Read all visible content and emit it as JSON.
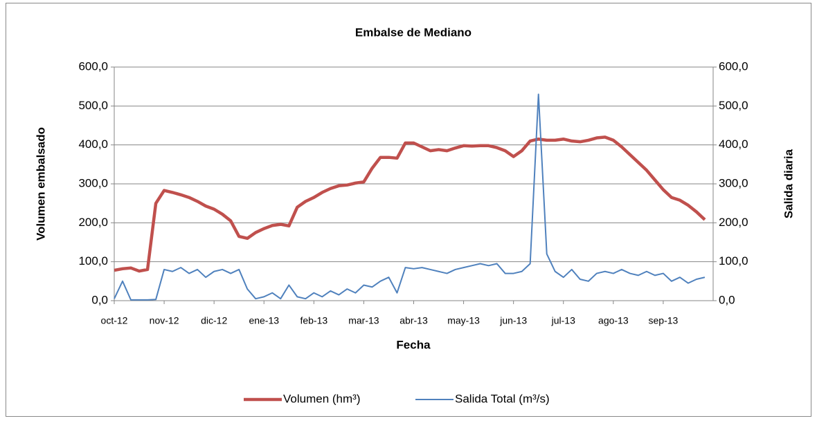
{
  "chart_data": {
    "type": "line",
    "title": "Embalse de Mediano",
    "x_label": "Fecha",
    "y_label": "Volumen embalsado",
    "y2_label": "Salida diaria",
    "categories": [
      "oct-12",
      null,
      null,
      null,
      null,
      null,
      "nov-12",
      null,
      null,
      null,
      null,
      null,
      "dic-12",
      null,
      null,
      null,
      null,
      null,
      "ene-13",
      null,
      null,
      null,
      null,
      null,
      "feb-13",
      null,
      null,
      null,
      null,
      null,
      "mar-13",
      null,
      null,
      null,
      null,
      null,
      "abr-13",
      null,
      null,
      null,
      null,
      null,
      "may-13",
      null,
      null,
      null,
      null,
      null,
      "jun-13",
      null,
      null,
      null,
      null,
      null,
      "jul-13",
      null,
      null,
      null,
      null,
      null,
      "ago-13",
      null,
      null,
      null,
      null,
      null,
      "sep-13",
      null,
      null,
      null,
      null,
      null
    ],
    "series": [
      {
        "name": "Volumen (hm³)",
        "color": "#c0504d",
        "width": 4.5,
        "values": [
          78,
          82,
          84,
          76,
          80,
          250,
          283,
          278,
          272,
          265,
          255,
          243,
          235,
          222,
          205,
          165,
          160,
          175,
          185,
          193,
          196,
          192,
          240,
          255,
          265,
          278,
          288,
          295,
          297,
          302,
          305,
          340,
          368,
          368,
          366,
          405,
          405,
          395,
          385,
          388,
          385,
          392,
          398,
          397,
          398,
          398,
          393,
          385,
          370,
          385,
          410,
          415,
          412,
          412,
          415,
          410,
          408,
          412,
          418,
          420,
          412,
          395,
          375,
          355,
          335,
          310,
          285,
          265,
          258,
          245,
          228,
          208
        ]
      },
      {
        "name": "Salida Total (m³/s)",
        "color": "#4f81bd",
        "width": 2,
        "axis": "y2",
        "values": [
          5,
          50,
          2,
          2,
          2,
          3,
          80,
          75,
          85,
          70,
          80,
          60,
          75,
          80,
          70,
          80,
          30,
          5,
          10,
          20,
          5,
          40,
          10,
          5,
          20,
          10,
          25,
          15,
          30,
          20,
          40,
          35,
          50,
          60,
          20,
          85,
          82,
          85,
          80,
          75,
          70,
          80,
          85,
          90,
          95,
          90,
          95,
          70,
          70,
          75,
          95,
          530,
          120,
          75,
          60,
          80,
          55,
          50,
          70,
          75,
          70,
          80,
          70,
          65,
          75,
          65,
          70,
          50,
          60,
          45,
          55,
          60
        ]
      }
    ],
    "ylim": [
      0,
      600
    ],
    "yticks": [
      {
        "value": 0,
        "label": "0,0"
      },
      {
        "value": 100,
        "label": "100,0"
      },
      {
        "value": 200,
        "label": "200,0"
      },
      {
        "value": 300,
        "label": "300,0"
      },
      {
        "value": 400,
        "label": "400,0"
      },
      {
        "value": 500,
        "label": "500,0"
      },
      {
        "value": 600,
        "label": "600,0"
      }
    ],
    "y2lim": [
      0,
      600
    ],
    "y2ticks": [
      {
        "value": 0,
        "label": "0,0"
      },
      {
        "value": 100,
        "label": "100,0"
      },
      {
        "value": 200,
        "label": "200,0"
      },
      {
        "value": 300,
        "label": "300,0"
      },
      {
        "value": 400,
        "label": "400,0"
      },
      {
        "value": 500,
        "label": "500,0"
      },
      {
        "value": 600,
        "label": "600,0"
      }
    ],
    "grid": true,
    "legend": "bottom"
  }
}
